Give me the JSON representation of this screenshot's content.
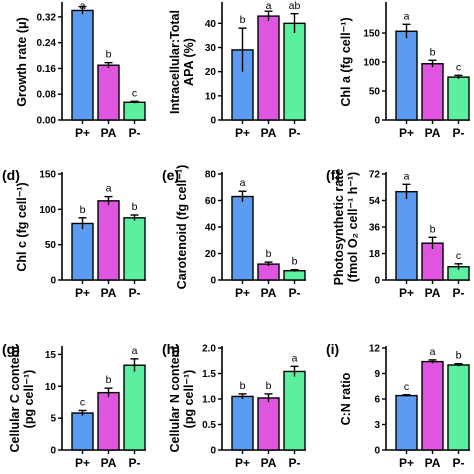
{
  "figure": {
    "categories": [
      "P+",
      "PA",
      "P-"
    ]
  },
  "colors": {
    "P+": "#5b9bf0",
    "PA": "#e055e0",
    "P-": "#5af0a0"
  },
  "chart_data": [
    {
      "type": "bar",
      "panel_label": "",
      "ylabel_lines": [
        "Growth rate (μ)"
      ],
      "categories": [
        "P+",
        "PA",
        "P-"
      ],
      "values": [
        0.34,
        0.17,
        0.055
      ],
      "errors": [
        0.012,
        0.008,
        0.003
      ],
      "letters": [
        "a",
        "b",
        "c"
      ],
      "ylim": [
        0,
        0.36
      ],
      "yticks": [
        0.0,
        0.08,
        0.16,
        0.24,
        0.32
      ],
      "tick_labels": [
        "0.00",
        "0.08",
        "0.16",
        "0.24",
        "0.32"
      ]
    },
    {
      "type": "bar",
      "panel_label": "",
      "ylabel_lines": [
        "Intracellular:Total",
        "APA (%)"
      ],
      "categories": [
        "P+",
        "PA",
        "P-"
      ],
      "values": [
        29,
        43,
        40
      ],
      "errors": [
        9,
        2,
        4
      ],
      "letters": [
        "b",
        "a",
        "ab"
      ],
      "ylim": [
        0,
        48
      ],
      "yticks": [
        0,
        10,
        20,
        30,
        40
      ],
      "tick_labels": [
        "0",
        "10",
        "20",
        "30",
        "40"
      ]
    },
    {
      "type": "bar",
      "panel_label": "",
      "ylabel_lines": [
        "Chl a (fg cell⁻¹)"
      ],
      "categories": [
        "P+",
        "PA",
        "P-"
      ],
      "values": [
        153,
        97,
        74
      ],
      "errors": [
        12,
        6,
        3
      ],
      "letters": [
        "a",
        "b",
        "c"
      ],
      "ylim": [
        0,
        200
      ],
      "yticks": [
        0,
        50,
        100,
        150
      ],
      "tick_labels": [
        "0",
        "50",
        "100",
        "150"
      ]
    },
    {
      "type": "bar",
      "panel_label": "(d)",
      "ylabel_lines": [
        "Chl c (fg cell⁻¹)"
      ],
      "categories": [
        "P+",
        "PA",
        "P-"
      ],
      "values": [
        80,
        112,
        88
      ],
      "errors": [
        8,
        6,
        4
      ],
      "letters": [
        "b",
        "a",
        "b"
      ],
      "ylim": [
        0,
        150
      ],
      "yticks": [
        0,
        50,
        100,
        150
      ],
      "tick_labels": [
        "0",
        "50",
        "100",
        "150"
      ]
    },
    {
      "type": "bar",
      "panel_label": "(e)",
      "ylabel_lines": [
        "Carotenoid (fg cell⁻¹)"
      ],
      "categories": [
        "P+",
        "PA",
        "P-"
      ],
      "values": [
        63,
        12,
        7
      ],
      "errors": [
        4,
        1.5,
        0.8
      ],
      "letters": [
        "a",
        "b",
        "b"
      ],
      "ylim": [
        0,
        80
      ],
      "yticks": [
        0,
        20,
        40,
        60,
        80
      ],
      "tick_labels": [
        "0",
        "20",
        "40",
        "60",
        "80"
      ]
    },
    {
      "type": "bar",
      "panel_label": "(f)",
      "ylabel_lines": [
        "Photosynthetic rate",
        "(fmol O₂ cell⁻¹ h⁻¹)"
      ],
      "categories": [
        "P+",
        "PA",
        "P-"
      ],
      "values": [
        60,
        25,
        9
      ],
      "errors": [
        5,
        4,
        2
      ],
      "letters": [
        "a",
        "b",
        "c"
      ],
      "ylim": [
        0,
        72
      ],
      "yticks": [
        0,
        18,
        36,
        54,
        72
      ],
      "tick_labels": [
        "0",
        "18",
        "36",
        "54",
        "72"
      ]
    },
    {
      "type": "bar",
      "panel_label": "(g)",
      "ylabel_lines": [
        "Cellular C content",
        "(pg cell⁻¹)"
      ],
      "categories": [
        "P+",
        "PA",
        "P-"
      ],
      "values": [
        5.8,
        9.0,
        13.3
      ],
      "errors": [
        0.4,
        0.7,
        1.0
      ],
      "letters": [
        "c",
        "b",
        "a"
      ],
      "ylim": [
        0,
        16
      ],
      "yticks": [
        0,
        5,
        10,
        15
      ],
      "tick_labels": [
        "0",
        "5",
        "10",
        "15"
      ]
    },
    {
      "type": "bar",
      "panel_label": "(h)",
      "ylabel_lines": [
        "Cellular N content",
        "(pg cell⁻¹)"
      ],
      "categories": [
        "P+",
        "PA",
        "P-"
      ],
      "values": [
        1.05,
        1.02,
        1.54
      ],
      "errors": [
        0.05,
        0.08,
        0.1
      ],
      "letters": [
        "b",
        "b",
        "a"
      ],
      "ylim": [
        0,
        2.0
      ],
      "yticks": [
        0,
        0.5,
        1.0,
        1.5,
        2.0
      ],
      "tick_labels": [
        "0",
        "0.5",
        "1.0",
        "1.5",
        "2.0"
      ]
    },
    {
      "type": "bar",
      "panel_label": "(i)",
      "ylabel_lines": [
        "C:N ratio"
      ],
      "categories": [
        "P+",
        "PA",
        "P-"
      ],
      "values": [
        6.4,
        10.4,
        10.0
      ],
      "errors": [
        0.1,
        0.2,
        0.15
      ],
      "letters": [
        "c",
        "a",
        "b"
      ],
      "ylim": [
        0,
        12
      ],
      "yticks": [
        0,
        3,
        6,
        9,
        12
      ],
      "tick_labels": [
        "0",
        "3",
        "6",
        "9",
        "12"
      ]
    }
  ]
}
